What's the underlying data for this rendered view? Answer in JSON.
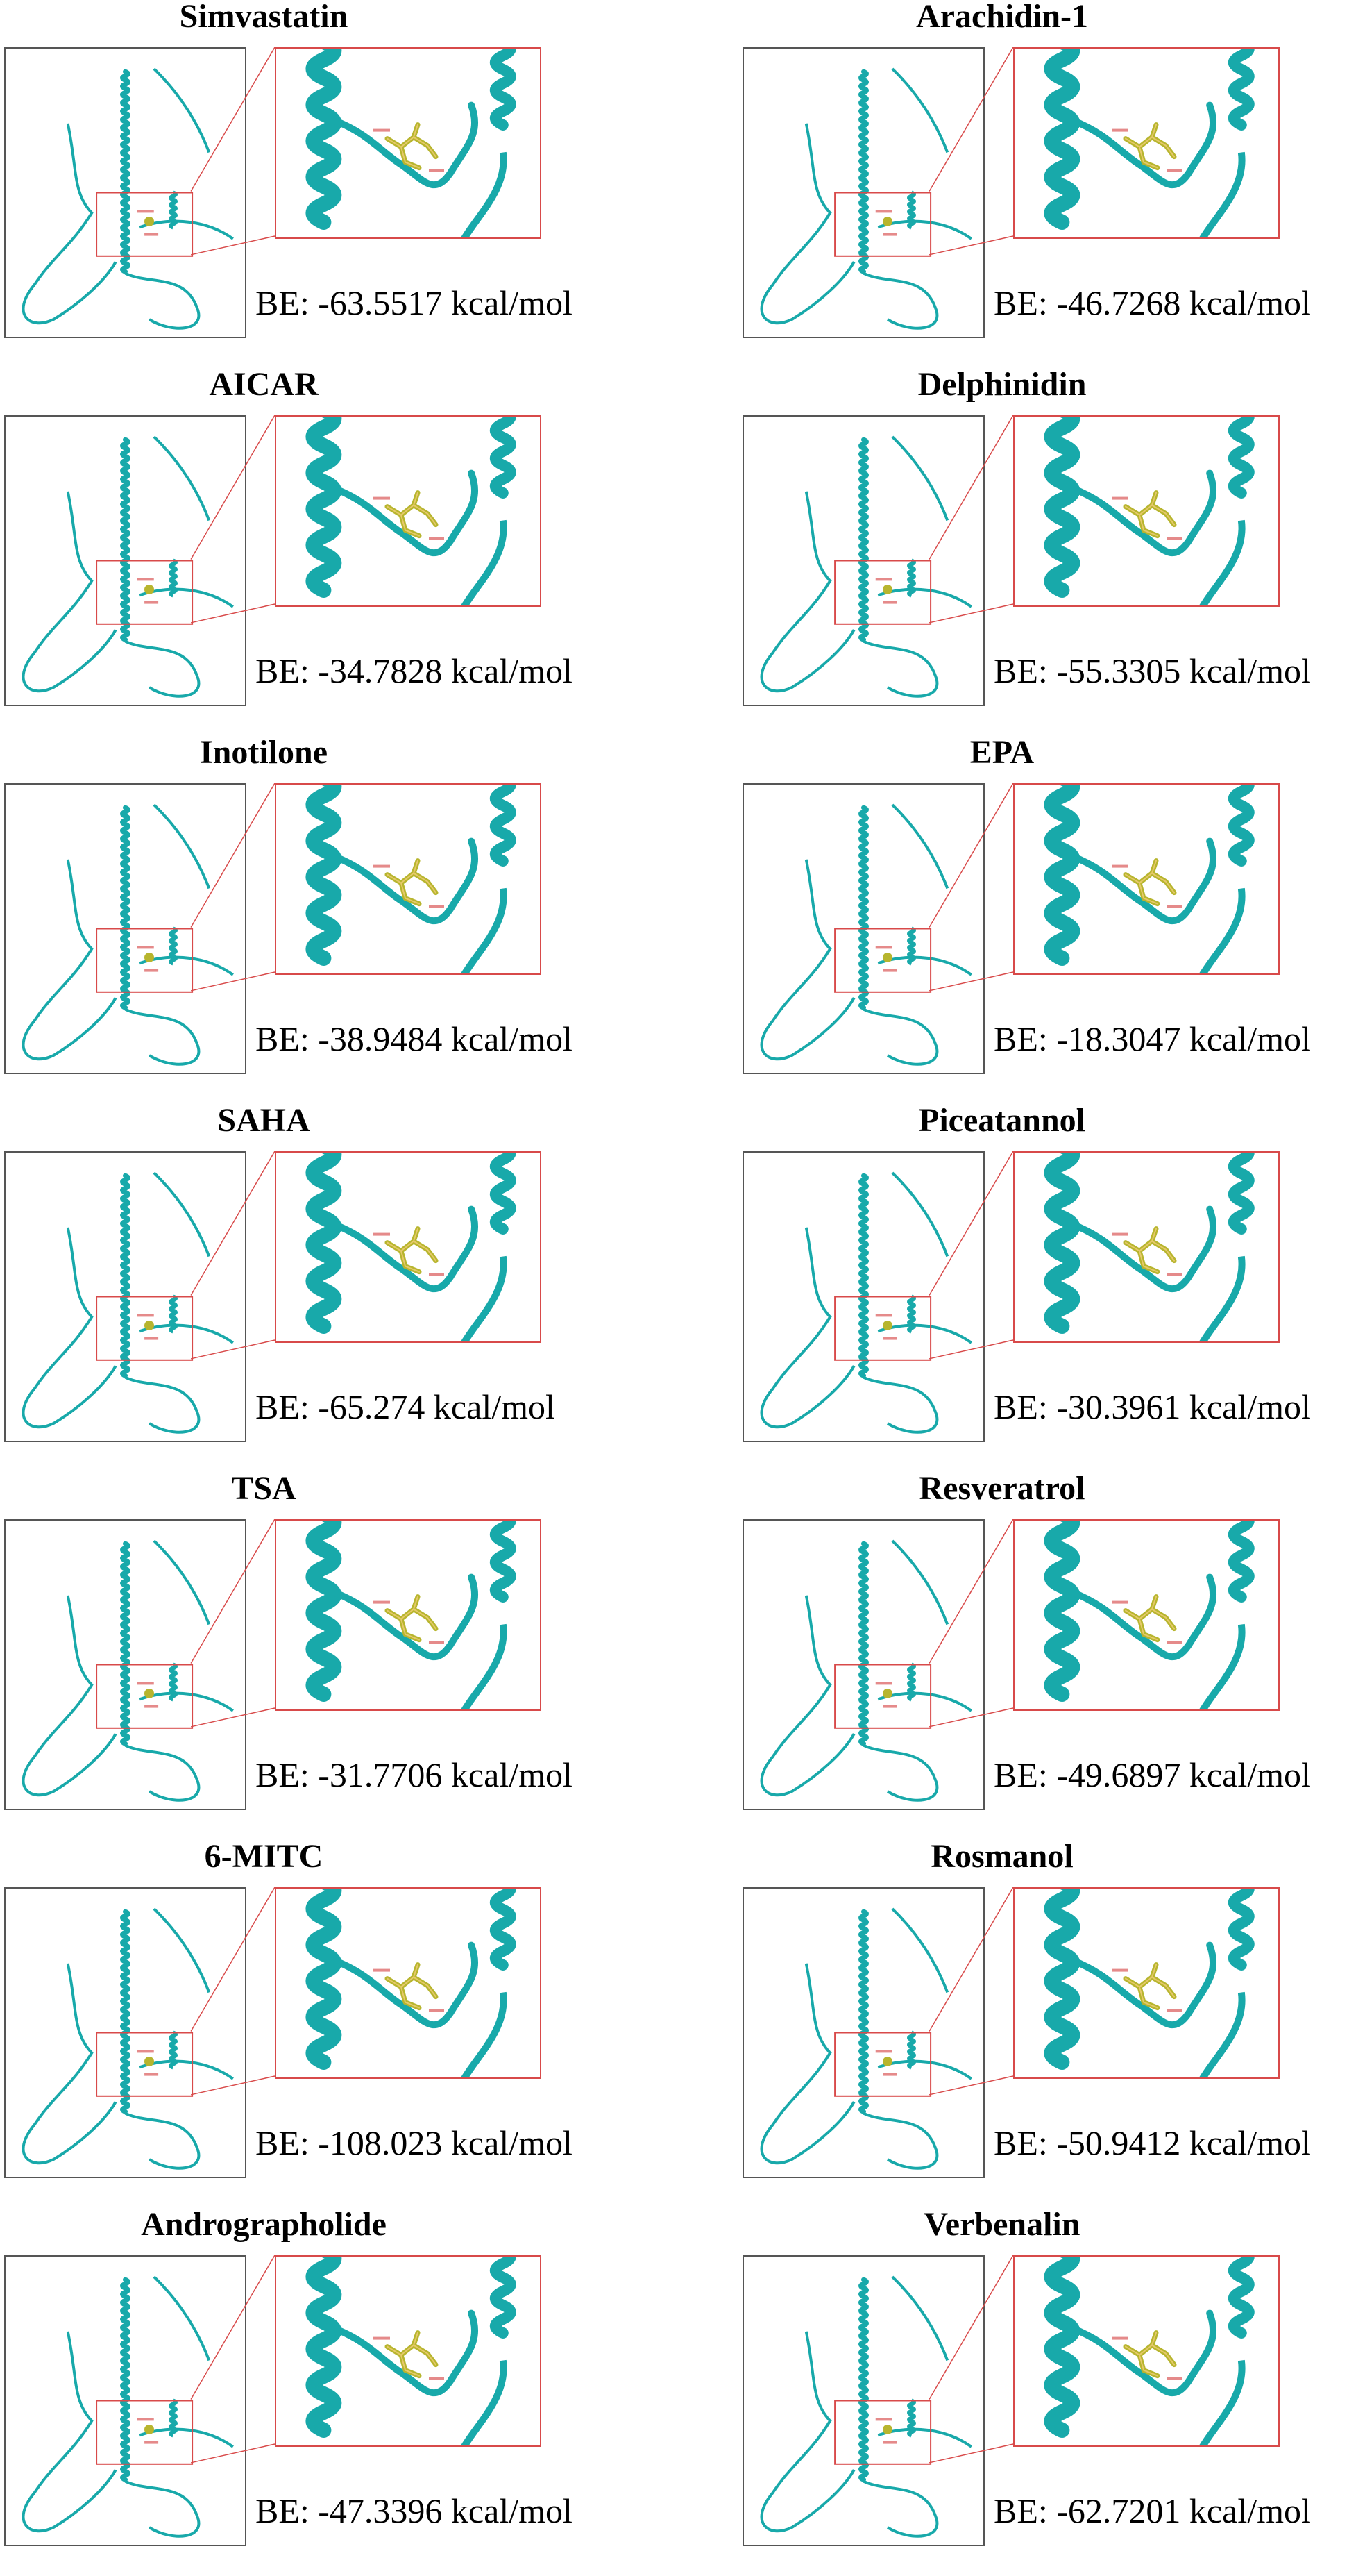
{
  "colors": {
    "protein": "#18a9aa",
    "protein_dark": "#0e7f80",
    "ligand": "#b7b52e",
    "ligand_highlight": "#e6c96a",
    "label_pink": "#e58a8a",
    "zoom_border": "#d84a4a",
    "overview_border": "#555555"
  },
  "panels": [
    {
      "title": "Simvastatin",
      "energy": "BE: -63.5517 kcal/mol"
    },
    {
      "title": "Arachidin-1",
      "energy": "BE: -46.7268 kcal/mol"
    },
    {
      "title": "AICAR",
      "energy": "BE: -34.7828 kcal/mol"
    },
    {
      "title": "Delphinidin",
      "energy": "BE: -55.3305 kcal/mol"
    },
    {
      "title": "Inotilone",
      "energy": "BE: -38.9484 kcal/mol"
    },
    {
      "title": "EPA",
      "energy": "BE: -18.3047 kcal/mol"
    },
    {
      "title": "SAHA",
      "energy": "BE: -65.274 kcal/mol"
    },
    {
      "title": "Piceatannol",
      "energy": "BE: -30.3961 kcal/mol"
    },
    {
      "title": "TSA",
      "energy": "BE: -31.7706 kcal/mol"
    },
    {
      "title": "Resveratrol",
      "energy": "BE: -49.6897 kcal/mol"
    },
    {
      "title": "6-MITC",
      "energy": "BE: -108.023 kcal/mol"
    },
    {
      "title": "Rosmanol",
      "energy": "BE: -50.9412 kcal/mol"
    },
    {
      "title": "Andrographolide",
      "energy": "BE: -47.3396 kcal/mol"
    },
    {
      "title": "Verbenalin",
      "energy": "BE: -62.7201 kcal/mol"
    }
  ]
}
